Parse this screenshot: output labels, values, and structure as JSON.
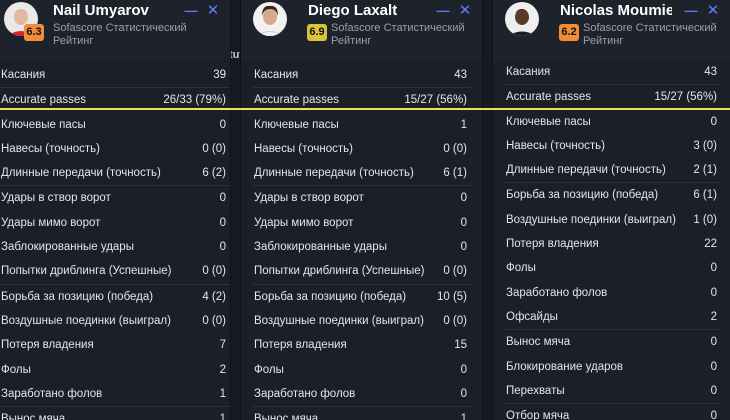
{
  "background_fragment": "tut",
  "accent": "#ece35a",
  "players": [
    {
      "name": "Nail Umyarov",
      "rating": "6.3",
      "rating_color": "#f08c3a",
      "subtitle_line1": "Sofascore Статистический",
      "subtitle_line2": "Рейтинг",
      "stats": [
        {
          "label": "Касания",
          "value": "39"
        },
        {
          "label": "Accurate passes",
          "value": "26/33 (79%)"
        },
        {
          "label": "Ключевые пасы",
          "value": "0"
        },
        {
          "label": "Навесы (точность)",
          "value": "0 (0)"
        },
        {
          "label": "Длинные передачи (точность)",
          "value": "6 (2)"
        },
        {
          "label": "Удары в створ ворот",
          "value": "0"
        },
        {
          "label": "Удары мимо ворот",
          "value": "0"
        },
        {
          "label": "Заблокированные удары",
          "value": "0"
        },
        {
          "label": "Попытки дриблинга (Успешные)",
          "value": "0 (0)"
        },
        {
          "label": "Борьба за позицию (победа)",
          "value": "4 (2)"
        },
        {
          "label": "Воздушные поединки (выиграл)",
          "value": "0 (0)"
        },
        {
          "label": "Потеря владения",
          "value": "7"
        },
        {
          "label": "Фолы",
          "value": "2"
        },
        {
          "label": "Заработано фолов",
          "value": "1"
        },
        {
          "label": "Вынос мяча",
          "value": "1"
        }
      ]
    },
    {
      "name": "Diego Laxalt",
      "rating": "6.9",
      "rating_color": "#d9c33b",
      "subtitle_line1": "Sofascore Статистический",
      "subtitle_line2": "Рейтинг",
      "stats": [
        {
          "label": "Касания",
          "value": "43"
        },
        {
          "label": "Accurate passes",
          "value": "15/27 (56%)"
        },
        {
          "label": "Ключевые пасы",
          "value": "1"
        },
        {
          "label": "Навесы (точность)",
          "value": "0 (0)"
        },
        {
          "label": "Длинные передачи (точность)",
          "value": "6 (1)"
        },
        {
          "label": "Удары в створ ворот",
          "value": "0"
        },
        {
          "label": "Удары мимо ворот",
          "value": "0"
        },
        {
          "label": "Заблокированные удары",
          "value": "0"
        },
        {
          "label": "Попытки дриблинга (Успешные)",
          "value": "0 (0)"
        },
        {
          "label": "Борьба за позицию (победа)",
          "value": "10 (5)"
        },
        {
          "label": "Воздушные поединки (выиграл)",
          "value": "0 (0)"
        },
        {
          "label": "Потеря владения",
          "value": "15"
        },
        {
          "label": "Фолы",
          "value": "0"
        },
        {
          "label": "Заработано фолов",
          "value": "0"
        },
        {
          "label": "Вынос мяча",
          "value": "1"
        }
      ]
    },
    {
      "name": "Nicolas Moumie ...",
      "rating": "6.2",
      "rating_color": "#f08c3a",
      "subtitle_line1": "Sofascore Статистический",
      "subtitle_line2": "Рейтинг",
      "stats": [
        {
          "label": "Касания",
          "value": "43"
        },
        {
          "label": "Accurate passes",
          "value": "15/27 (56%)"
        },
        {
          "label": "Ключевые пасы",
          "value": "0"
        },
        {
          "label": "Навесы (точность)",
          "value": "3 (0)"
        },
        {
          "label": "Длинные передачи (точность)",
          "value": "2 (1)"
        },
        {
          "label": "Борьба за позицию (победа)",
          "value": "6 (1)"
        },
        {
          "label": "Воздушные поединки (выиграл)",
          "value": "1 (0)"
        },
        {
          "label": "Потеря владения",
          "value": "22"
        },
        {
          "label": "Фолы",
          "value": "0"
        },
        {
          "label": "Заработано фолов",
          "value": "0"
        },
        {
          "label": "Офсайды",
          "value": "2"
        },
        {
          "label": "Вынос мяча",
          "value": "0"
        },
        {
          "label": "Блокирование ударов",
          "value": "0"
        },
        {
          "label": "Перехваты",
          "value": "0"
        },
        {
          "label": "Отбор мяча",
          "value": "0"
        }
      ]
    }
  ]
}
